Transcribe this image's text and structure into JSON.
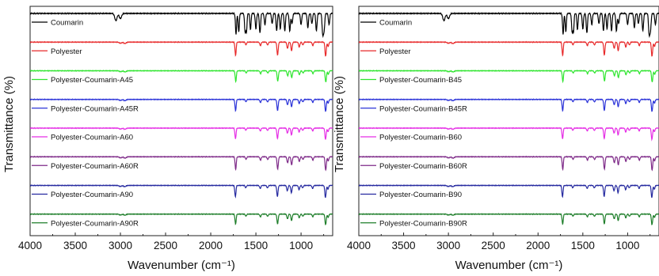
{
  "chart_data": [
    {
      "type": "line",
      "panel": "A",
      "xlabel": "Wavenumber (cm⁻¹)",
      "ylabel": "Transmittance (%)",
      "xlim": [
        4000,
        650
      ],
      "x_reversed": true,
      "xticks": [
        4000,
        3500,
        3000,
        2500,
        2000,
        1500,
        1000
      ],
      "y_tick_labels": false,
      "grid": false,
      "legend_placement": "inline-left",
      "series": [
        {
          "name": "Coumarin",
          "color": "#000000"
        },
        {
          "name": "Polyester",
          "color": "#e8292a"
        },
        {
          "name": "Polyester-Coumarin-A45",
          "color": "#2ee52e"
        },
        {
          "name": "Polyester-Coumarin-A45R",
          "color": "#2a32d8"
        },
        {
          "name": "Polyester-Coumarin-A60",
          "color": "#e52ee5"
        },
        {
          "name": "Polyester-Coumarin-A60R",
          "color": "#7e2a88"
        },
        {
          "name": "Polyester-Coumarin-A90",
          "color": "#262aa0"
        },
        {
          "name": "Polyester-Coumarin-A90R",
          "color": "#1e7e2a"
        }
      ]
    },
    {
      "type": "line",
      "panel": "B",
      "xlabel": "Wavenumber (cm⁻¹)",
      "ylabel": "Transmittance (%)",
      "xlim": [
        4000,
        650
      ],
      "x_reversed": true,
      "xticks": [
        4000,
        3500,
        3000,
        2500,
        2000,
        1500,
        1000
      ],
      "y_tick_labels": false,
      "grid": false,
      "legend_placement": "inline-left",
      "series": [
        {
          "name": "Coumarin",
          "color": "#000000"
        },
        {
          "name": "Polyester",
          "color": "#e8292a"
        },
        {
          "name": "Polyester-Coumarin-B45",
          "color": "#2ee52e"
        },
        {
          "name": "Polyester-Coumarin-B45R",
          "color": "#2a32d8"
        },
        {
          "name": "Polyester-Coumarin-B60",
          "color": "#e52ee5"
        },
        {
          "name": "Polyester-Coumarin-B60R",
          "color": "#7e2a88"
        },
        {
          "name": "Polyester-Coumarin-B90",
          "color": "#262aa0"
        },
        {
          "name": "Polyester-Coumarin-B90R",
          "color": "#1e7e2a"
        }
      ]
    }
  ],
  "spectra": {
    "coumarin_bands": [
      {
        "x": 3050,
        "depth": 0.35
      },
      {
        "x": 3000,
        "depth": 0.25
      },
      {
        "x": 1720,
        "depth": 1.0
      },
      {
        "x": 1690,
        "depth": 0.9
      },
      {
        "x": 1620,
        "depth": 0.85
      },
      {
        "x": 1605,
        "depth": 0.9
      },
      {
        "x": 1560,
        "depth": 0.8
      },
      {
        "x": 1500,
        "depth": 0.75
      },
      {
        "x": 1455,
        "depth": 0.95
      },
      {
        "x": 1400,
        "depth": 0.55
      },
      {
        "x": 1320,
        "depth": 0.5
      },
      {
        "x": 1270,
        "depth": 0.85
      },
      {
        "x": 1230,
        "depth": 0.75
      },
      {
        "x": 1180,
        "depth": 0.85
      },
      {
        "x": 1125,
        "depth": 0.85
      },
      {
        "x": 1100,
        "depth": 0.5
      },
      {
        "x": 1000,
        "depth": 0.55
      },
      {
        "x": 925,
        "depth": 0.7
      },
      {
        "x": 880,
        "depth": 0.5
      },
      {
        "x": 830,
        "depth": 0.85
      },
      {
        "x": 760,
        "depth": 1.0
      },
      {
        "x": 745,
        "depth": 0.8
      },
      {
        "x": 690,
        "depth": 0.55
      }
    ],
    "polyester_bands": [
      {
        "x": 3000,
        "depth": 0.08
      },
      {
        "x": 2950,
        "depth": 0.1
      },
      {
        "x": 1725,
        "depth": 0.95
      },
      {
        "x": 1610,
        "depth": 0.2
      },
      {
        "x": 1450,
        "depth": 0.25
      },
      {
        "x": 1370,
        "depth": 0.2
      },
      {
        "x": 1260,
        "depth": 0.9
      },
      {
        "x": 1150,
        "depth": 0.45
      },
      {
        "x": 1105,
        "depth": 0.6
      },
      {
        "x": 1020,
        "depth": 0.35
      },
      {
        "x": 980,
        "depth": 0.2
      },
      {
        "x": 870,
        "depth": 0.25
      },
      {
        "x": 728,
        "depth": 1.0
      },
      {
        "x": 700,
        "depth": 0.3
      }
    ]
  }
}
